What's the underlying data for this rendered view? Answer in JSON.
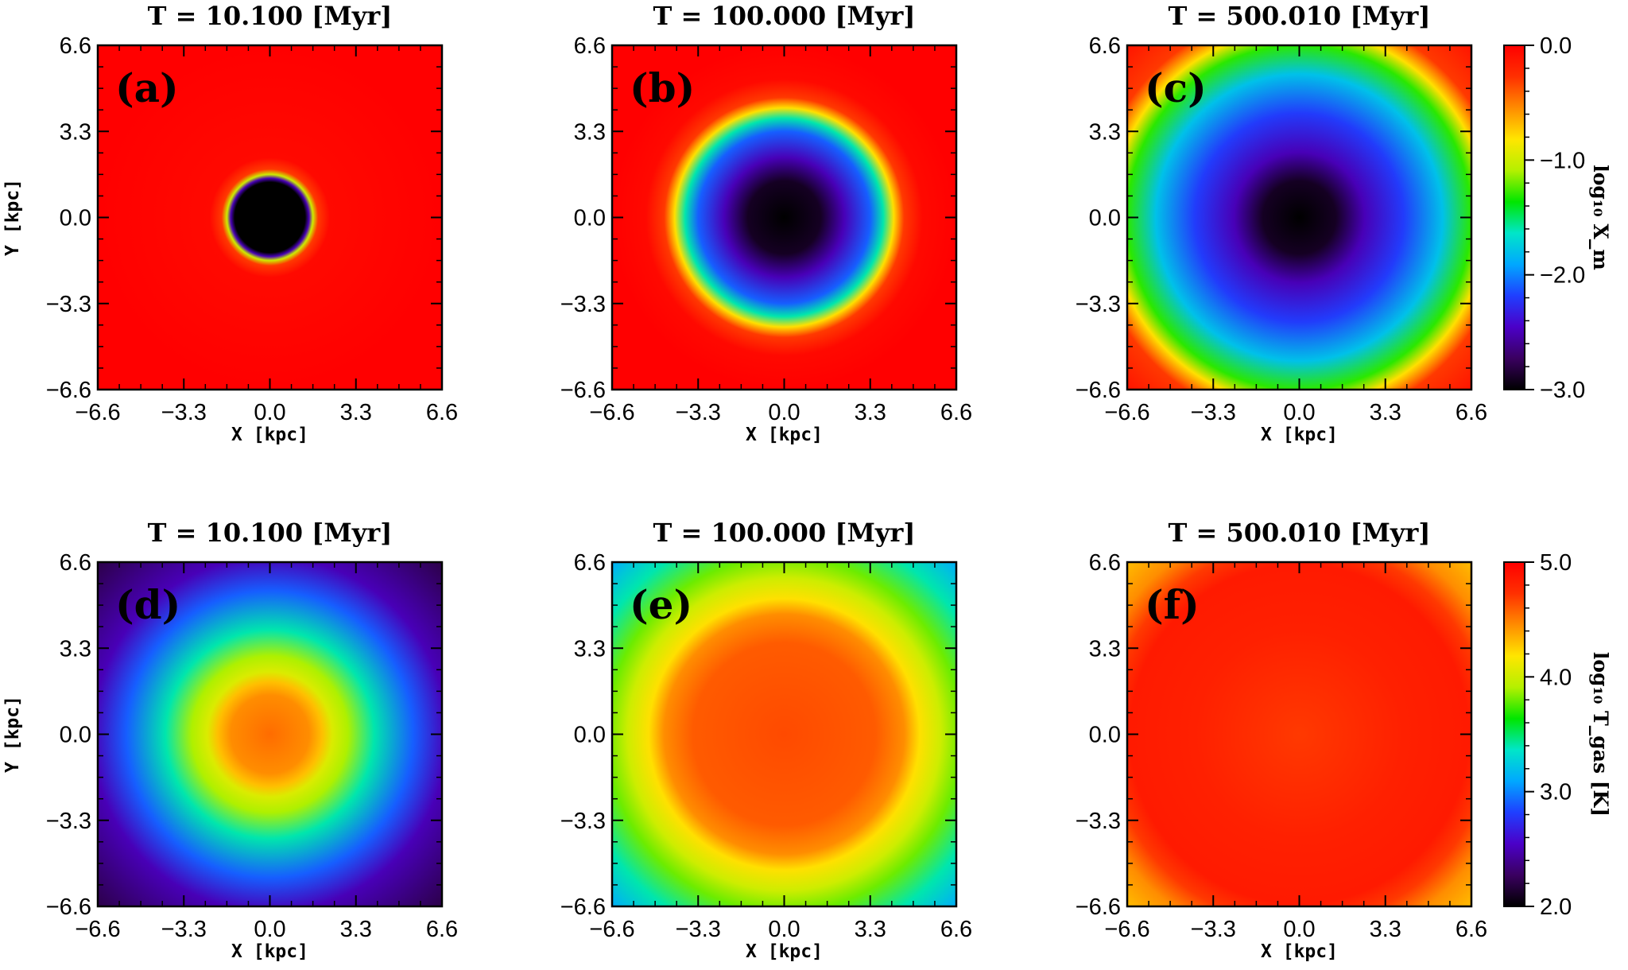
{
  "figure": {
    "colormap_stops": [
      "#000000",
      "#3a0060",
      "#4b00c8",
      "#1f3fff",
      "#00a8ff",
      "#00e6c8",
      "#00e600",
      "#b4f000",
      "#ffe600",
      "#ff8c00",
      "#ff3000",
      "#ff0000"
    ]
  },
  "chart_data": [
    {
      "type": "heatmap",
      "panel": "(a)",
      "title": "T =     10.100 [Myr]",
      "xlabel": "X [kpc]",
      "ylabel": "Y [kpc]",
      "xlim": [
        -6.6,
        6.6
      ],
      "ylim": [
        -6.6,
        6.6
      ],
      "xticks": [
        "−6.6",
        "−3.3",
        "0.0",
        "3.3",
        "6.6"
      ],
      "yticks": [
        "6.6",
        "3.3",
        "0.0",
        "−3.3",
        "−6.6"
      ],
      "radial_profile": {
        "r_kpc": [
          0,
          1.35,
          1.5,
          1.65,
          1.85,
          2.3,
          6.6,
          9.4
        ],
        "value": [
          -3.0,
          -3.0,
          -2.5,
          -1.0,
          -0.3,
          -0.05,
          0.0,
          0.0
        ]
      }
    },
    {
      "type": "heatmap",
      "panel": "(b)",
      "title": "T =    100.000 [Myr]",
      "xlabel": "X [kpc]",
      "ylabel": "",
      "xlim": [
        -6.6,
        6.6
      ],
      "ylim": [
        -6.6,
        6.6
      ],
      "xticks": [
        "−6.6",
        "−3.3",
        "0.0",
        "3.3",
        "6.6"
      ],
      "yticks": [
        "6.6",
        "3.3",
        "0.0",
        "−3.3",
        "−6.6"
      ],
      "radial_profile": {
        "r_kpc": [
          0,
          1.4,
          2.3,
          3.3,
          3.8,
          4.2,
          4.6,
          5.3,
          6.6,
          9.4
        ],
        "value": [
          -3.0,
          -2.9,
          -2.5,
          -2.1,
          -1.6,
          -0.8,
          -0.3,
          -0.05,
          0.0,
          0.0
        ]
      }
    },
    {
      "type": "heatmap",
      "panel": "(c)",
      "title": "T =    500.010 [Myr]",
      "xlabel": "X [kpc]",
      "ylabel": "",
      "xlim": [
        -6.6,
        6.6
      ],
      "ylim": [
        -6.6,
        6.6
      ],
      "xticks": [
        "−6.6",
        "−3.3",
        "0.0",
        "3.3",
        "6.6"
      ],
      "yticks": [
        "6.6",
        "3.3",
        "0.0",
        "−3.3",
        "−6.6"
      ],
      "radial_profile": {
        "r_kpc": [
          0,
          1.4,
          2.5,
          4.0,
          5.5,
          6.6,
          7.2,
          7.9,
          9.4
        ],
        "value": [
          -3.0,
          -2.9,
          -2.5,
          -2.2,
          -1.8,
          -1.3,
          -0.8,
          -0.3,
          -0.1
        ]
      }
    },
    {
      "type": "heatmap",
      "panel": "(d)",
      "title": "T =     10.100 [Myr]",
      "xlabel": "X [kpc]",
      "ylabel": "Y [kpc]",
      "xlim": [
        -6.6,
        6.6
      ],
      "ylim": [
        -6.6,
        6.6
      ],
      "xticks": [
        "−6.6",
        "−3.3",
        "0.0",
        "3.3",
        "6.6"
      ],
      "yticks": [
        "6.6",
        "3.3",
        "0.0",
        "−3.3",
        "−6.6"
      ],
      "radial_profile": {
        "r_kpc": [
          0,
          1.5,
          2.0,
          2.4,
          3.0,
          4.0,
          5.5,
          6.8,
          9.4
        ],
        "value": [
          4.55,
          4.45,
          4.3,
          4.05,
          3.9,
          3.4,
          2.9,
          2.5,
          2.2
        ]
      }
    },
    {
      "type": "heatmap",
      "panel": "(e)",
      "title": "T =    100.000 [Myr]",
      "xlabel": "X [kpc]",
      "ylabel": "",
      "xlim": [
        -6.6,
        6.6
      ],
      "ylim": [
        -6.6,
        6.6
      ],
      "xticks": [
        "−6.6",
        "−3.3",
        "0.0",
        "3.3",
        "6.6"
      ],
      "yticks": [
        "6.6",
        "3.3",
        "0.0",
        "−3.3",
        "−6.6"
      ],
      "radial_profile": {
        "r_kpc": [
          0,
          3.5,
          4.6,
          5.2,
          6.0,
          6.8,
          8.0,
          9.4
        ],
        "value": [
          4.65,
          4.6,
          4.45,
          4.2,
          4.0,
          3.8,
          3.4,
          3.1
        ]
      }
    },
    {
      "type": "heatmap",
      "panel": "(f)",
      "title": "T =    500.010 [Myr]",
      "xlabel": "X [kpc]",
      "ylabel": "",
      "xlim": [
        -6.6,
        6.6
      ],
      "ylim": [
        -6.6,
        6.6
      ],
      "xticks": [
        "−6.6",
        "−3.3",
        "0.0",
        "3.3",
        "6.6"
      ],
      "yticks": [
        "6.6",
        "3.3",
        "0.0",
        "−3.3",
        "−6.6"
      ],
      "radial_profile": {
        "r_kpc": [
          0,
          4.0,
          6.5,
          7.3,
          8.2,
          9.4
        ],
        "value": [
          4.7,
          4.82,
          4.85,
          4.7,
          4.45,
          4.3
        ]
      }
    }
  ],
  "colorbars": [
    {
      "label": "log₁₀ X_m",
      "min": -3.0,
      "max": 0.0,
      "ticks": [
        "0.0",
        "−1.0",
        "−2.0",
        "−3.0"
      ],
      "tick_values": [
        0.0,
        -1.0,
        -2.0,
        -3.0
      ]
    },
    {
      "label": "log₁₀ T_gas [K]",
      "min": 2.0,
      "max": 5.0,
      "ticks": [
        "5.0",
        "4.0",
        "3.0",
        "2.0"
      ],
      "tick_values": [
        5.0,
        4.0,
        3.0,
        2.0
      ]
    }
  ]
}
